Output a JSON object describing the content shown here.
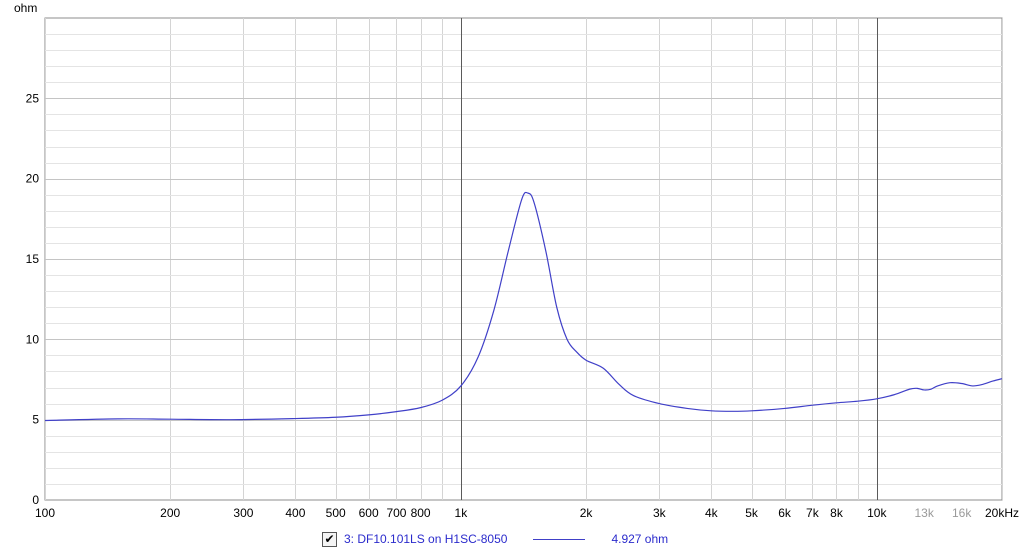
{
  "chart_data": {
    "type": "line",
    "title": "",
    "xlabel": "",
    "ylabel": "ohm",
    "x_scale": "log",
    "xlim": [
      100,
      20000
    ],
    "ylim": [
      0,
      30
    ],
    "grid": true,
    "x_tick_labels": [
      {
        "value": 100,
        "label": "100",
        "muted": false
      },
      {
        "value": 200,
        "label": "200",
        "muted": false
      },
      {
        "value": 300,
        "label": "300",
        "muted": false
      },
      {
        "value": 400,
        "label": "400",
        "muted": false
      },
      {
        "value": 500,
        "label": "500",
        "muted": false
      },
      {
        "value": 600,
        "label": "600",
        "muted": false
      },
      {
        "value": 700,
        "label": "700",
        "muted": false
      },
      {
        "value": 800,
        "label": "800",
        "muted": false
      },
      {
        "value": 1000,
        "label": "1k",
        "muted": false
      },
      {
        "value": 2000,
        "label": "2k",
        "muted": false
      },
      {
        "value": 3000,
        "label": "3k",
        "muted": false
      },
      {
        "value": 4000,
        "label": "4k",
        "muted": false
      },
      {
        "value": 5000,
        "label": "5k",
        "muted": false
      },
      {
        "value": 6000,
        "label": "6k",
        "muted": false
      },
      {
        "value": 7000,
        "label": "7k",
        "muted": false
      },
      {
        "value": 8000,
        "label": "8k",
        "muted": false
      },
      {
        "value": 10000,
        "label": "10k",
        "muted": false
      },
      {
        "value": 13000,
        "label": "13k",
        "muted": true
      },
      {
        "value": 16000,
        "label": "16k",
        "muted": true
      },
      {
        "value": 20000,
        "label": "20kHz",
        "muted": false
      }
    ],
    "y_ticks": [
      0,
      5,
      10,
      15,
      20,
      25
    ],
    "series": [
      {
        "name": "3: DF10.101LS on H1SC-8050",
        "color": "#4040c8",
        "x": [
          100,
          150,
          200,
          280,
          400,
          500,
          600,
          700,
          800,
          900,
          1000,
          1100,
          1200,
          1300,
          1400,
          1450,
          1500,
          1600,
          1700,
          1800,
          1900,
          2000,
          2200,
          2400,
          2600,
          3000,
          3500,
          4000,
          4500,
          5000,
          6000,
          7000,
          8000,
          9000,
          10000,
          11000,
          12000,
          12500,
          13000,
          13500,
          14000,
          15000,
          16000,
          17000,
          18000,
          19000,
          20000
        ],
        "y": [
          4.95,
          5.05,
          5.03,
          5.0,
          5.07,
          5.15,
          5.3,
          5.5,
          5.75,
          6.2,
          7.1,
          8.9,
          11.8,
          15.5,
          18.7,
          19.1,
          18.5,
          15.5,
          12.0,
          10.0,
          9.2,
          8.7,
          8.2,
          7.2,
          6.5,
          6.0,
          5.7,
          5.55,
          5.52,
          5.55,
          5.7,
          5.9,
          6.05,
          6.15,
          6.3,
          6.55,
          6.9,
          6.95,
          6.85,
          6.9,
          7.1,
          7.3,
          7.25,
          7.1,
          7.2,
          7.4,
          7.55
        ]
      }
    ],
    "legend": {
      "placement": "bottom",
      "checked": true,
      "label": "3: DF10.101LS on H1SC-8050",
      "value": "4.927 ohm"
    }
  }
}
